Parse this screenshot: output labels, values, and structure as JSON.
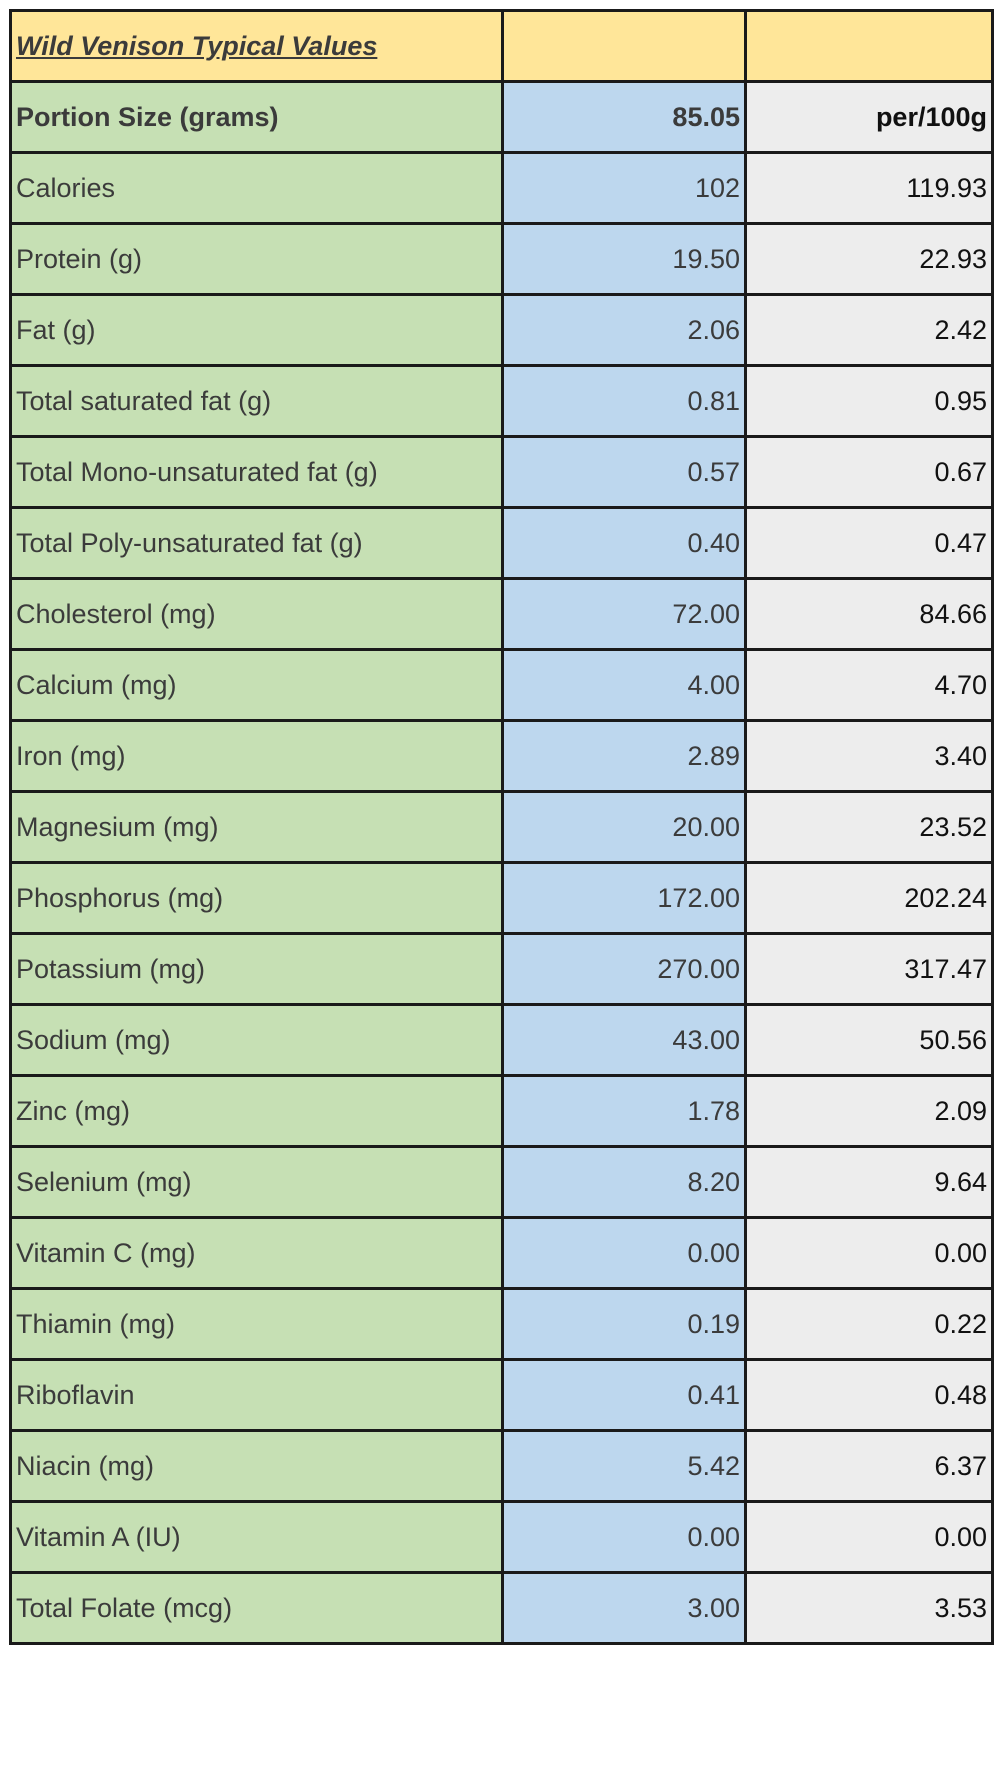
{
  "table": {
    "title": "Wild Venison Typical Values",
    "header": {
      "label": "Portion Size (grams)",
      "portion": "85.05",
      "per100": "per/100g"
    },
    "rows": [
      {
        "label": "Calories",
        "portion": "102",
        "per100": "119.93"
      },
      {
        "label": "Protein (g)",
        "portion": "19.50",
        "per100": "22.93"
      },
      {
        "label": "Fat (g)",
        "portion": "2.06",
        "per100": "2.42"
      },
      {
        "label": "Total saturated fat (g)",
        "portion": "0.81",
        "per100": "0.95"
      },
      {
        "label": "Total Mono-unsaturated fat (g)",
        "portion": "0.57",
        "per100": "0.67"
      },
      {
        "label": "Total Poly-unsaturated fat (g)",
        "portion": "0.40",
        "per100": "0.47"
      },
      {
        "label": "Cholesterol (mg)",
        "portion": "72.00",
        "per100": "84.66"
      },
      {
        "label": "Calcium (mg)",
        "portion": "4.00",
        "per100": "4.70"
      },
      {
        "label": "Iron (mg)",
        "portion": "2.89",
        "per100": "3.40"
      },
      {
        "label": "Magnesium (mg)",
        "portion": "20.00",
        "per100": "23.52"
      },
      {
        "label": "Phosphorus (mg)",
        "portion": "172.00",
        "per100": "202.24"
      },
      {
        "label": "Potassium (mg)",
        "portion": "270.00",
        "per100": "317.47"
      },
      {
        "label": "Sodium (mg)",
        "portion": "43.00",
        "per100": "50.56"
      },
      {
        "label": "Zinc (mg)",
        "portion": "1.78",
        "per100": "2.09"
      },
      {
        "label": "Selenium (mg)",
        "portion": "8.20",
        "per100": "9.64"
      },
      {
        "label": "Vitamin C (mg)",
        "portion": "0.00",
        "per100": "0.00"
      },
      {
        "label": "Thiamin (mg)",
        "portion": "0.19",
        "per100": "0.22"
      },
      {
        "label": "Riboflavin",
        "portion": "0.41",
        "per100": "0.48"
      },
      {
        "label": "Niacin (mg)",
        "portion": "5.42",
        "per100": "6.37"
      },
      {
        "label": "Vitamin A (IU)",
        "portion": "0.00",
        "per100": "0.00"
      },
      {
        "label": "Total Folate (mcg)",
        "portion": "3.00",
        "per100": "3.53"
      }
    ]
  },
  "colors": {
    "title_fill": "#ffe699",
    "label_fill": "#c6e0b4",
    "portion_fill": "#bdd7ee",
    "per100_fill": "#ededed"
  }
}
